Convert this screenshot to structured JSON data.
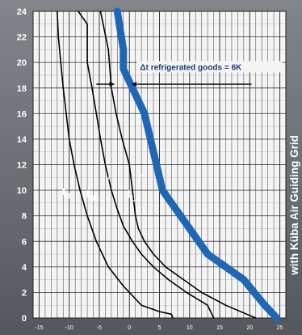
{
  "chart_data": {
    "type": "line",
    "xlim": [
      -16,
      26
    ],
    "ylim": [
      0,
      24
    ],
    "yticks": [
      "0",
      "2",
      "4",
      "6",
      "8",
      "10",
      "12",
      "14",
      "16",
      "18",
      "20",
      "22",
      "24"
    ],
    "xticks": [
      "-15",
      "-10",
      "-5",
      "0",
      "5",
      "10",
      "15",
      "20",
      "25"
    ],
    "grid": true,
    "series": [
      {
        "name": "t0",
        "x": [
          -12.0,
          -11.8,
          -11.4,
          -11.0,
          -10.5,
          -10.0,
          -9.2,
          -8.2,
          -7.0,
          -5.5,
          -3.5,
          -1.0,
          2.0,
          5.0,
          7.0,
          7.2
        ],
        "y": [
          24,
          22,
          20,
          18,
          16,
          14,
          12,
          10,
          8,
          6,
          4,
          2.5,
          1.0,
          0.5,
          0.3,
          0
        ]
      },
      {
        "name": "t0h",
        "x": [
          -8.5,
          -7.0,
          -7.0,
          -6.2,
          -5.5,
          -4.8,
          -4.0,
          -3.0,
          -2.0,
          -1.0,
          0.5,
          2.0,
          4.0,
          6.5,
          9.5,
          13.0,
          14.0
        ],
        "y": [
          24,
          23,
          20,
          18,
          16,
          14,
          12,
          10,
          8.5,
          7.2,
          6,
          5,
          4,
          3,
          2,
          1,
          0
        ]
      },
      {
        "name": "tL1",
        "x": [
          -4.8,
          -3.5,
          -3.0,
          -2.2,
          -1.2,
          0.0,
          0.5,
          1.0,
          1.5,
          2.5,
          4.0,
          6.0,
          9.0,
          12.0,
          16.0,
          19.5,
          21.0
        ],
        "y": [
          24,
          21,
          18,
          16,
          14,
          12,
          10,
          8,
          7,
          6,
          5,
          4,
          3,
          2,
          1,
          0.3,
          0
        ]
      },
      {
        "name": "",
        "x": [
          -2.0,
          -1.0,
          -1.0,
          -0.5,
          0.5,
          1.5,
          2.5,
          3.0,
          3.5,
          4.5,
          5.5,
          7.0,
          8.5,
          10.0,
          13.0,
          16.0,
          19.0,
          22.5,
          24.5
        ],
        "y": [
          24,
          21,
          19.5,
          19,
          18,
          17,
          16,
          15,
          14,
          12,
          10,
          9,
          8,
          7,
          5,
          4,
          3,
          1,
          0
        ]
      }
    ]
  },
  "labels": {
    "t0_main": "t",
    "t0_sub": "0",
    "t0h_main": "t",
    "t0h_sub": "0h",
    "tL1_main": "t",
    "tL1_sub": "L1",
    "annotation": "Δt refrigerated goods = 6K",
    "side_text": "with Küba Air Guiding Grid"
  },
  "colors": {
    "background": "#6c6f73",
    "plot_background": "#f4f4f4",
    "grid": "#1a1a1a",
    "thin_curves": "#000000",
    "highlight_curve": "#1f67b5"
  }
}
